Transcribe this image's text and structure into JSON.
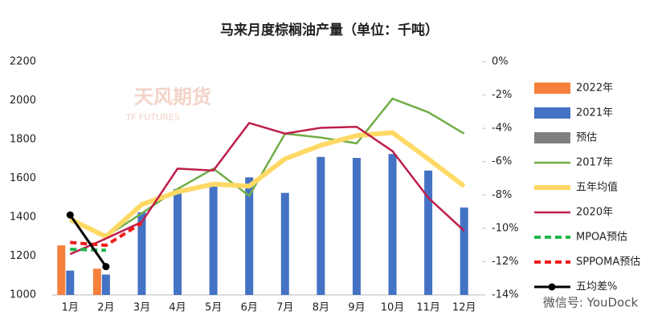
{
  "chart_data": {
    "type": "combo",
    "title": "马来月度棕榈油产量（单位：千吨）",
    "categories": [
      "1月",
      "2月",
      "3月",
      "4月",
      "5月",
      "6月",
      "7月",
      "8月",
      "9月",
      "10月",
      "11月",
      "12月"
    ],
    "ylim": [
      1000,
      2200
    ],
    "yticks": [
      1000,
      1200,
      1400,
      1600,
      1800,
      2000,
      2200
    ],
    "y2lim": [
      -14,
      0
    ],
    "y2ticks": [
      {
        "value": 0,
        "label": "0%"
      },
      {
        "value": -2,
        "label": "-2%"
      },
      {
        "value": -4,
        "label": "-4%"
      },
      {
        "value": -6,
        "label": "-6%"
      },
      {
        "value": -8,
        "label": "-8%"
      },
      {
        "value": -10,
        "label": "-10%"
      },
      {
        "value": -12,
        "label": "-12%"
      },
      {
        "value": -14,
        "label": "-14%"
      }
    ],
    "grid": false,
    "legend": "right",
    "series": [
      {
        "name": "2022年",
        "type": "bar",
        "color": "#f4803c",
        "values": [
          1255,
          1135,
          null,
          null,
          null,
          null,
          null,
          null,
          null,
          null,
          null,
          null
        ]
      },
      {
        "name": "2021年",
        "type": "bar",
        "color": "#4472c4",
        "values": [
          1125,
          1105,
          1425,
          1545,
          1565,
          1605,
          1525,
          1710,
          1705,
          1725,
          1640,
          1450
        ]
      },
      {
        "name": "预估",
        "type": "bar",
        "color": "#7f7f7f",
        "values": [
          null,
          null,
          null,
          null,
          null,
          null,
          null,
          null,
          null,
          null,
          null,
          null
        ]
      },
      {
        "name": "2017年",
        "type": "line",
        "color": "#70ad47",
        "width": 2.5,
        "values": [
          1380,
          1300,
          1420,
          1545,
          1650,
          1510,
          1830,
          1810,
          1780,
          2010,
          1940,
          1830
        ]
      },
      {
        "name": "五年均值",
        "type": "line",
        "color": "#ffd966",
        "width": 6,
        "values": [
          1390,
          1300,
          1465,
          1530,
          1570,
          1560,
          1700,
          1770,
          1820,
          1835,
          1700,
          1560
        ]
      },
      {
        "name": "2020年",
        "type": "line",
        "color": "#be1e4a",
        "width": 2.5,
        "values": [
          1210,
          1290,
          1375,
          1650,
          1640,
          1885,
          1830,
          1860,
          1865,
          1740,
          1500,
          1330
        ]
      },
      {
        "name": "MPOA预估",
        "type": "line",
        "dash": true,
        "color": "#1fb84a",
        "width": 4,
        "values": [
          1235,
          1230,
          null,
          null,
          null,
          null,
          null,
          null,
          null,
          null,
          null,
          null
        ]
      },
      {
        "name": "SPPOMA预估",
        "type": "line",
        "dash": true,
        "color": "#ee1c1c",
        "width": 4,
        "values": [
          1270,
          1255,
          1370,
          null,
          null,
          null,
          null,
          null,
          null,
          null,
          null,
          null
        ]
      },
      {
        "name": "五均差%",
        "type": "line",
        "axis": "y2",
        "marker": true,
        "color": "#000000",
        "width": 3,
        "values": [
          -9.2,
          -12.3,
          null,
          null,
          null,
          null,
          null,
          null,
          null,
          null,
          null,
          null
        ]
      }
    ],
    "watermarks": [
      "天风期货",
      "TF FUTURES",
      "微信号: YouDock"
    ]
  }
}
